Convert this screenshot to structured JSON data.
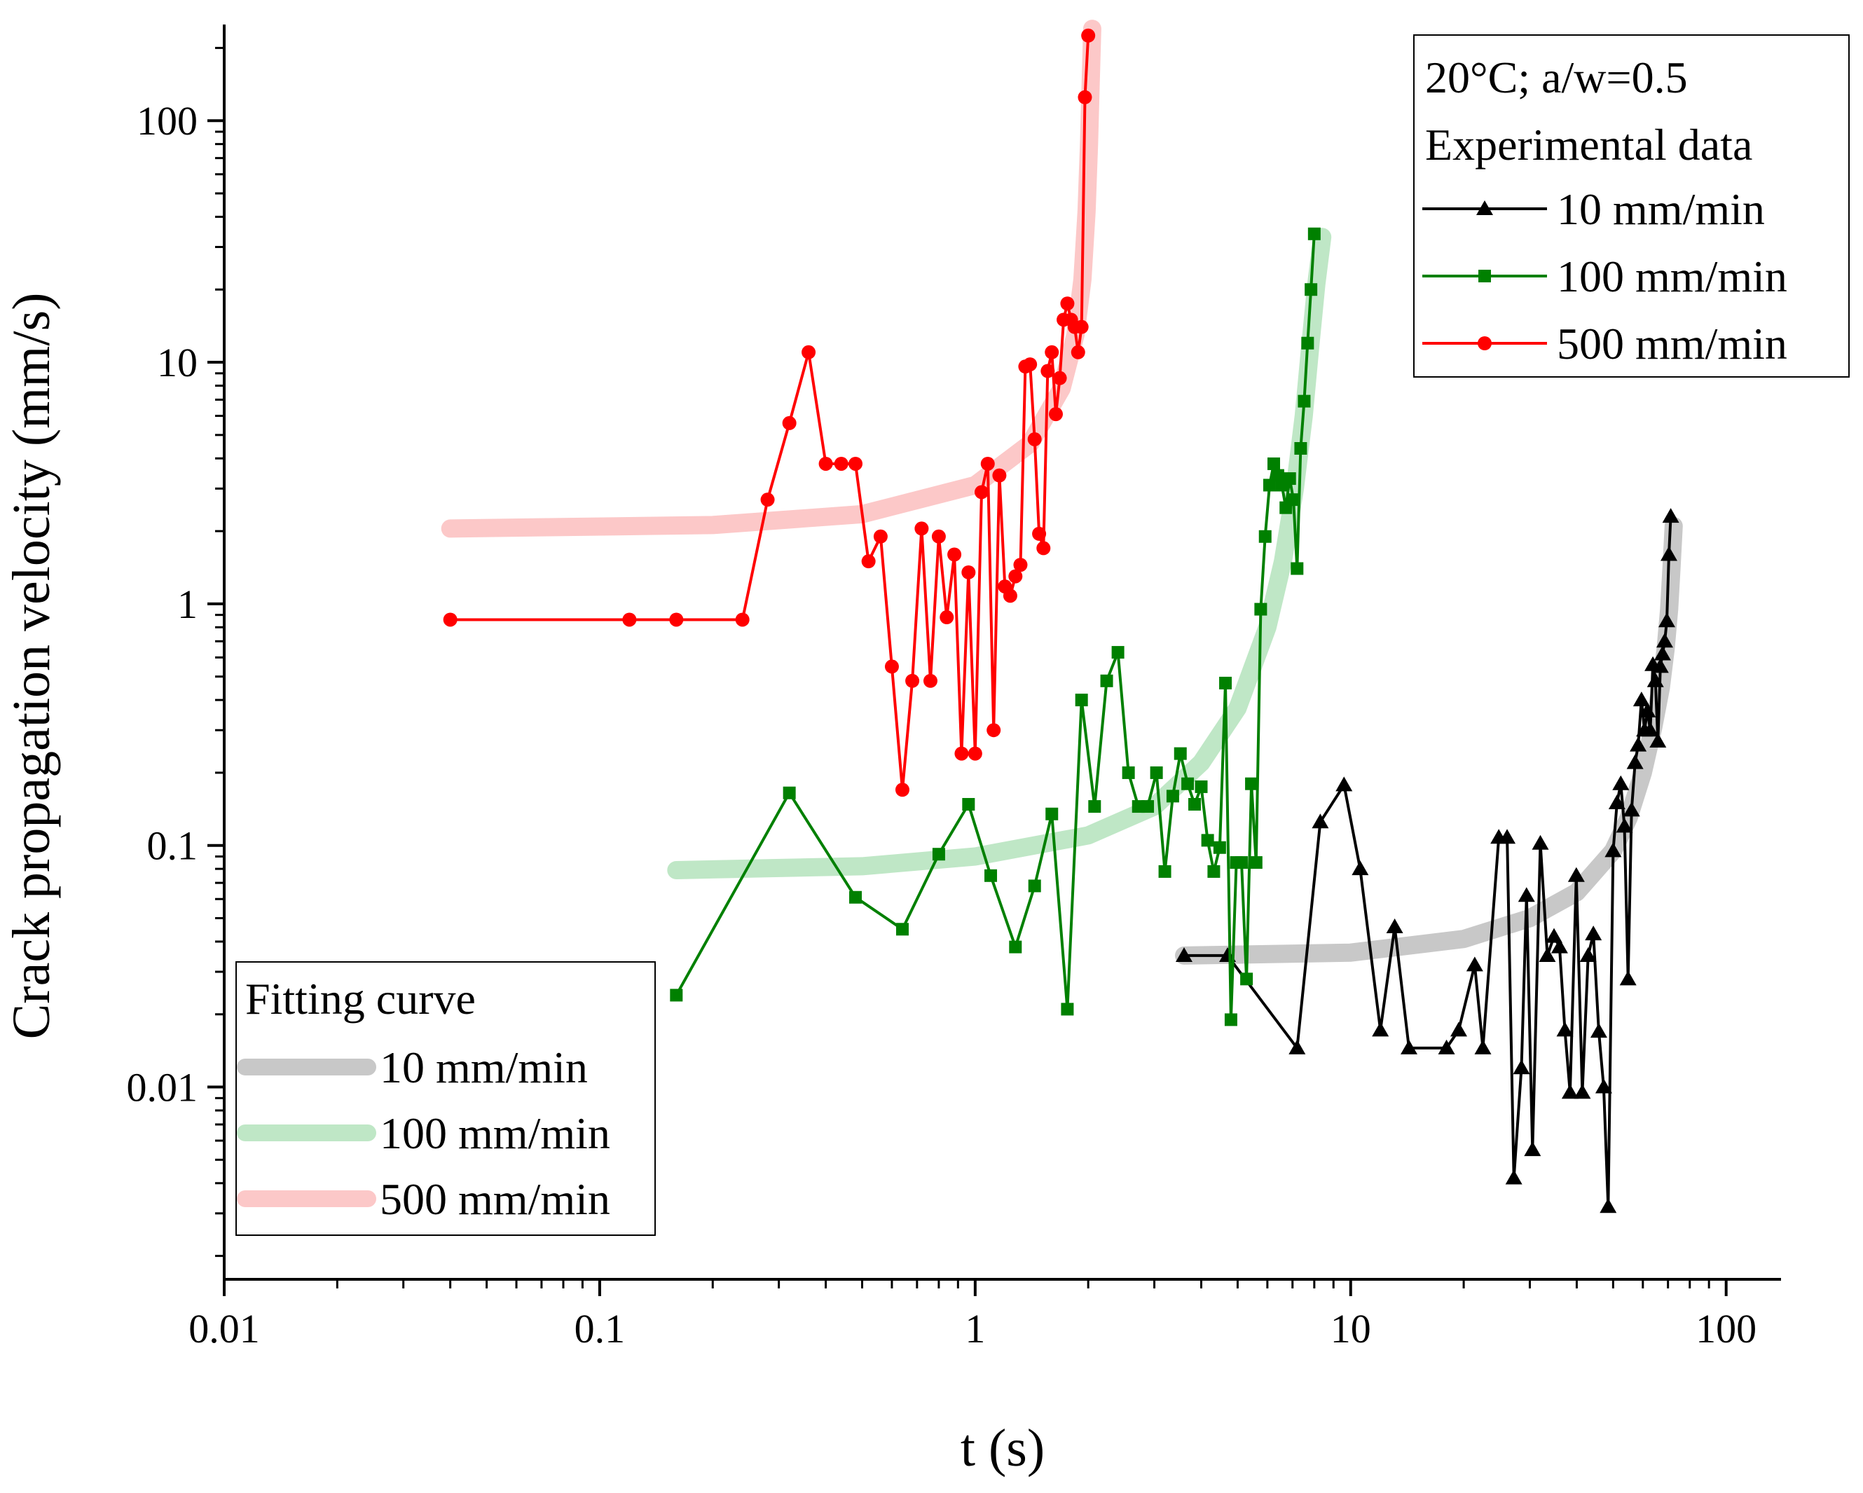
{
  "chart_data": {
    "type": "line",
    "title": "",
    "xlabel": "t (s)",
    "ylabel": "Crack propagation velocity (mm/s)",
    "xscale": "log",
    "yscale": "log",
    "xlim": [
      0.01,
      140
    ],
    "ylim": [
      0.0016,
      250
    ],
    "grid": false,
    "x_ticks": [
      "0.01",
      "0.1",
      "1",
      "10",
      "100"
    ],
    "y_ticks": [
      "0.01",
      "0.1",
      "1",
      "10",
      "100"
    ],
    "legend_experimental": {
      "placement": "top-right",
      "header_lines": [
        "20°C; a/w=0.5",
        "Experimental data"
      ],
      "entries": [
        "10 mm/min",
        "100 mm/min",
        "500 mm/min"
      ]
    },
    "legend_fitting": {
      "placement": "bottom-left",
      "header": "Fitting curve",
      "entries": [
        "10 mm/min",
        "100 mm/min",
        "500 mm/min"
      ]
    },
    "colors": {
      "10 mm/min": "#000000",
      "100 mm/min": "#008000",
      "500 mm/min": "#ff0000",
      "fit_10 mm/min": "#c8c8c8",
      "fit_100 mm/min": "#bfe7c6",
      "fit_500 mm/min": "#fcc8c8"
    },
    "series": [
      {
        "name": "10 mm/min",
        "marker": "triangle",
        "x": [
          3.6,
          4.7,
          7.2,
          8.3,
          9.6,
          10.6,
          12.0,
          13.1,
          14.3,
          18.0,
          19.4,
          21.4,
          22.5,
          24.8,
          26.1,
          27.2,
          28.5,
          29.4,
          30.5,
          32.0,
          33.4,
          34.8,
          36.0,
          37.2,
          38.4,
          39.9,
          41.4,
          42.9,
          44.3,
          45.8,
          47.2,
          48.5,
          50.0,
          51.2,
          52.4,
          53.6,
          54.8,
          56.0,
          57.2,
          58.3,
          59.5,
          60.6,
          61.7,
          62.8,
          63.8,
          64.8,
          65.8,
          66.8,
          67.7,
          68.6,
          69.5,
          70.4,
          71.2
        ],
        "y": [
          0.035,
          0.035,
          0.0145,
          0.125,
          0.178,
          0.08,
          0.0172,
          0.046,
          0.0145,
          0.0145,
          0.0172,
          0.032,
          0.0145,
          0.108,
          0.108,
          0.0042,
          0.012,
          0.062,
          0.0055,
          0.102,
          0.035,
          0.042,
          0.038,
          0.0172,
          0.0095,
          0.075,
          0.0095,
          0.035,
          0.043,
          0.017,
          0.01,
          0.0032,
          0.095,
          0.15,
          0.18,
          0.12,
          0.028,
          0.14,
          0.22,
          0.26,
          0.4,
          0.3,
          0.36,
          0.3,
          0.56,
          0.48,
          0.27,
          0.55,
          0.62,
          0.7,
          0.85,
          1.6,
          2.3
        ]
      },
      {
        "name": "100 mm/min",
        "marker": "square",
        "x": [
          0.16,
          0.32,
          0.48,
          0.64,
          0.8,
          0.96,
          1.1,
          1.28,
          1.44,
          1.6,
          1.76,
          1.92,
          2.08,
          2.24,
          2.4,
          2.56,
          2.72,
          2.88,
          3.04,
          3.2,
          3.36,
          3.52,
          3.68,
          3.84,
          4.0,
          4.16,
          4.32,
          4.48,
          4.64,
          4.8,
          4.96,
          5.12,
          5.28,
          5.44,
          5.6,
          5.76,
          5.92,
          6.08,
          6.24,
          6.4,
          6.56,
          6.72,
          6.88,
          7.04,
          7.2,
          7.36,
          7.52,
          7.68,
          7.84,
          8.0
        ],
        "y": [
          0.024,
          0.165,
          0.061,
          0.045,
          0.092,
          0.148,
          0.075,
          0.038,
          0.068,
          0.135,
          0.021,
          0.4,
          0.145,
          0.48,
          0.63,
          0.2,
          0.145,
          0.145,
          0.2,
          0.078,
          0.16,
          0.24,
          0.18,
          0.148,
          0.175,
          0.105,
          0.078,
          0.098,
          0.47,
          0.019,
          0.085,
          0.085,
          0.028,
          0.18,
          0.085,
          0.95,
          1.9,
          3.1,
          3.8,
          3.4,
          3.1,
          2.5,
          3.3,
          2.7,
          1.4,
          4.4,
          6.9,
          12.0,
          20.0,
          34.0
        ]
      },
      {
        "name": "500 mm/min",
        "marker": "circle",
        "x": [
          0.04,
          0.12,
          0.16,
          0.24,
          0.28,
          0.32,
          0.36,
          0.4,
          0.44,
          0.48,
          0.52,
          0.56,
          0.6,
          0.64,
          0.68,
          0.72,
          0.76,
          0.8,
          0.84,
          0.88,
          0.92,
          0.96,
          1.0,
          1.04,
          1.08,
          1.12,
          1.16,
          1.2,
          1.24,
          1.28,
          1.32,
          1.36,
          1.4,
          1.44,
          1.48,
          1.52,
          1.56,
          1.6,
          1.64,
          1.68,
          1.72,
          1.76,
          1.8,
          1.84,
          1.88,
          1.92,
          1.96,
          2.0
        ],
        "y": [
          0.86,
          0.86,
          0.86,
          0.86,
          2.7,
          5.6,
          11.0,
          3.8,
          3.8,
          3.8,
          1.5,
          1.9,
          0.55,
          0.17,
          0.48,
          2.05,
          0.48,
          1.9,
          0.88,
          1.6,
          0.24,
          1.35,
          0.24,
          2.9,
          3.8,
          0.3,
          3.4,
          1.18,
          1.08,
          1.3,
          1.45,
          9.6,
          9.8,
          4.8,
          1.95,
          1.7,
          9.2,
          11.0,
          6.1,
          8.6,
          15.0,
          17.5,
          15.0,
          14.0,
          11.0,
          14.0,
          125.0,
          225.0
        ]
      },
      {
        "name": "",
        "legend_ref": "fit 10 mm/min",
        "style": "fit",
        "x": [
          3.6,
          10,
          20,
          30,
          40,
          50,
          55,
          60,
          64,
          67,
          69,
          70.5,
          71.5,
          72.5
        ],
        "y": [
          0.035,
          0.036,
          0.041,
          0.05,
          0.064,
          0.095,
          0.13,
          0.2,
          0.31,
          0.45,
          0.65,
          0.95,
          1.4,
          2.1
        ]
      },
      {
        "name": "",
        "legend_ref": "fit 100 mm/min",
        "style": "fit",
        "x": [
          0.16,
          0.5,
          1,
          2,
          3,
          4,
          5,
          6,
          6.6,
          7.1,
          7.5,
          7.8,
          8.1,
          8.4
        ],
        "y": [
          0.079,
          0.082,
          0.09,
          0.11,
          0.145,
          0.22,
          0.37,
          0.8,
          1.5,
          3.0,
          6.0,
          11.5,
          21.0,
          33.0
        ]
      },
      {
        "name": "",
        "legend_ref": "fit 500 mm/min",
        "style": "fit",
        "x": [
          0.04,
          0.2,
          0.5,
          1,
          1.4,
          1.7,
          1.85,
          1.93,
          1.98,
          2.01,
          2.03,
          2.05
        ],
        "y": [
          2.05,
          2.12,
          2.35,
          3.1,
          4.6,
          7.8,
          13.0,
          22.0,
          42.0,
          80.0,
          140.0,
          240.0
        ]
      }
    ]
  }
}
